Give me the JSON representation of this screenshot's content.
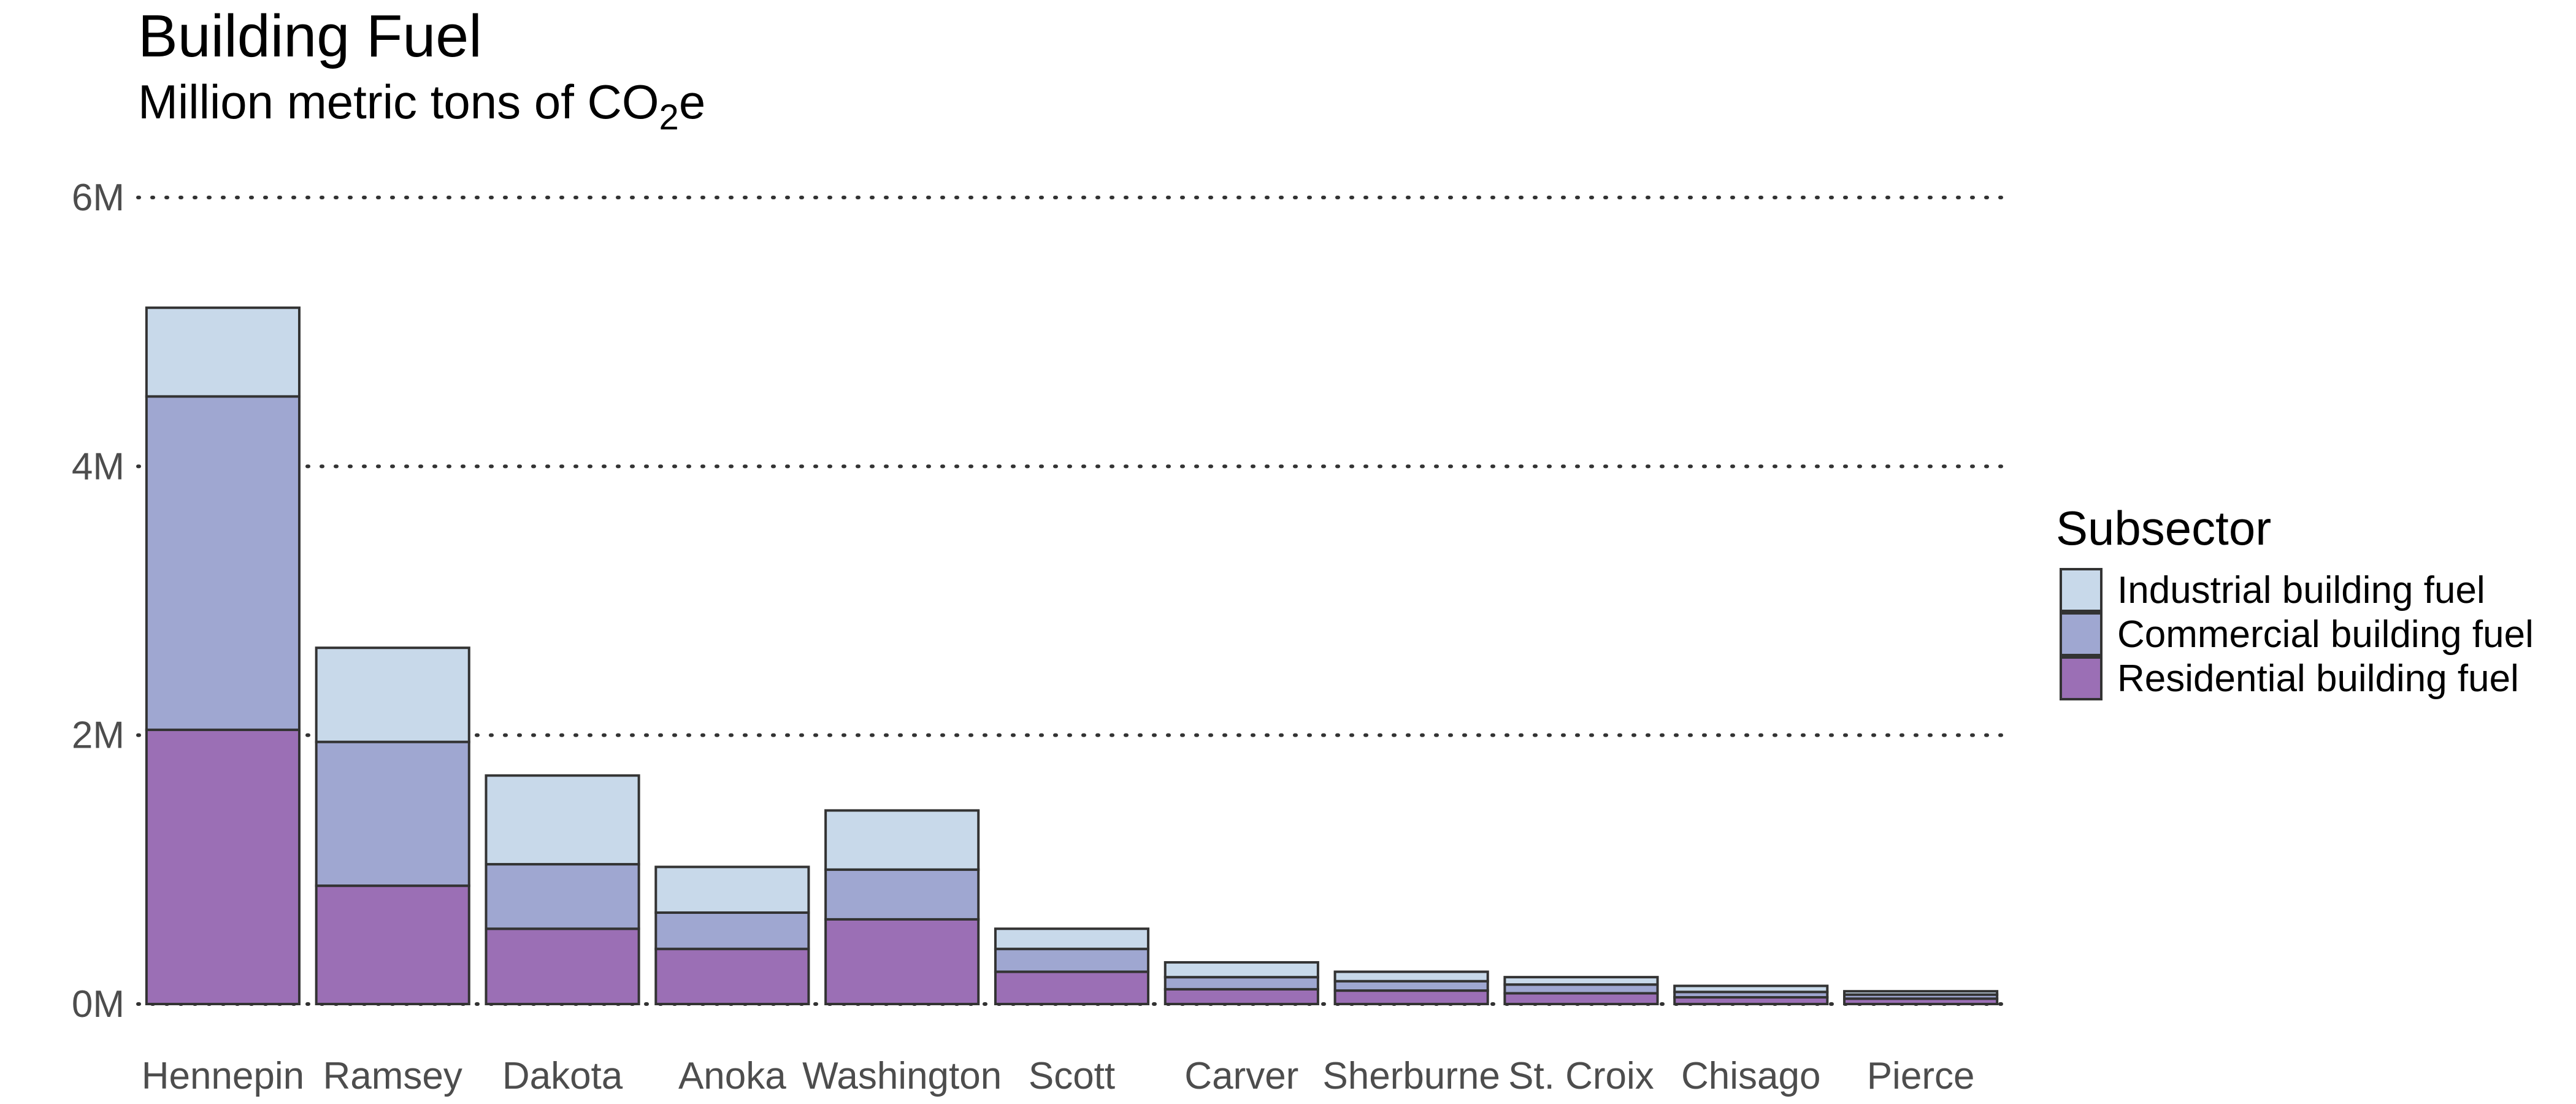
{
  "chart_data": {
    "type": "bar",
    "stacked": true,
    "title": "Building Fuel",
    "subtitle": {
      "prefix": "Million metric tons of CO",
      "subscript": "2",
      "suffix": "e"
    },
    "xlabel": "",
    "ylabel": "",
    "ylim": [
      0,
      6000000
    ],
    "yticks": [
      {
        "value": 0,
        "label": "0M"
      },
      {
        "value": 2000000,
        "label": "2M"
      },
      {
        "value": 4000000,
        "label": "4M"
      },
      {
        "value": 6000000,
        "label": "6M"
      }
    ],
    "grid": "horizontal-dotted",
    "legend_position": "right",
    "legend_title": "Subsector",
    "categories": [
      "Hennepin",
      "Ramsey",
      "Dakota",
      "Anoka",
      "Washington",
      "Scott",
      "Carver",
      "Sherburne",
      "St. Croix",
      "Chisago",
      "Pierce"
    ],
    "series": [
      {
        "name": "Residential building fuel",
        "color": "#9b6fb5",
        "values": [
          2040000,
          880000,
          560000,
          410000,
          630000,
          240000,
          110000,
          100000,
          80000,
          50000,
          40000
        ]
      },
      {
        "name": "Commercial building fuel",
        "color": "#9fa7d1",
        "values": [
          2480000,
          1070000,
          480000,
          270000,
          370000,
          170000,
          90000,
          70000,
          65000,
          40000,
          30000
        ]
      },
      {
        "name": "Industrial building fuel",
        "color": "#c8d9ea",
        "values": [
          660000,
          700000,
          660000,
          340000,
          440000,
          150000,
          110000,
          70000,
          55000,
          45000,
          25000
        ]
      }
    ],
    "legend_order": [
      "Industrial building fuel",
      "Commercial building fuel",
      "Residential building fuel"
    ]
  }
}
